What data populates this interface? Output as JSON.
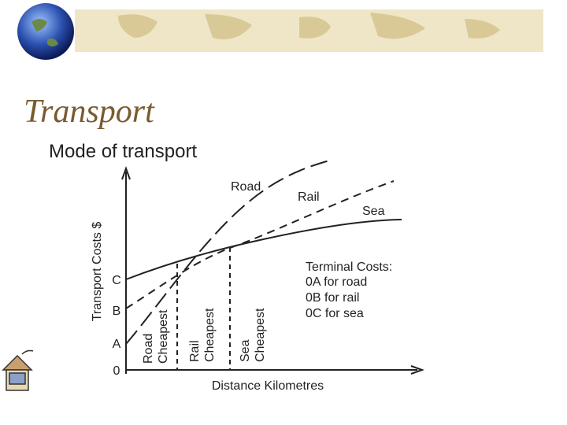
{
  "header": {
    "title": "Transport",
    "subtitle": "Mode of transport"
  },
  "diagram": {
    "y_axis_label": "Transport Costs $",
    "x_axis_label": "Distance Kilometres",
    "origin": "0",
    "intercepts": [
      "A",
      "B",
      "C"
    ],
    "curves": [
      "Road",
      "Rail",
      "Sea"
    ],
    "zones": [
      [
        "Road",
        "Cheapest"
      ],
      [
        "Rail",
        "Cheapest"
      ],
      [
        "Sea",
        "Cheapest"
      ]
    ],
    "terminal_costs": [
      "Terminal Costs:",
      "0A for road",
      "0B for rail",
      "0C for sea"
    ]
  }
}
